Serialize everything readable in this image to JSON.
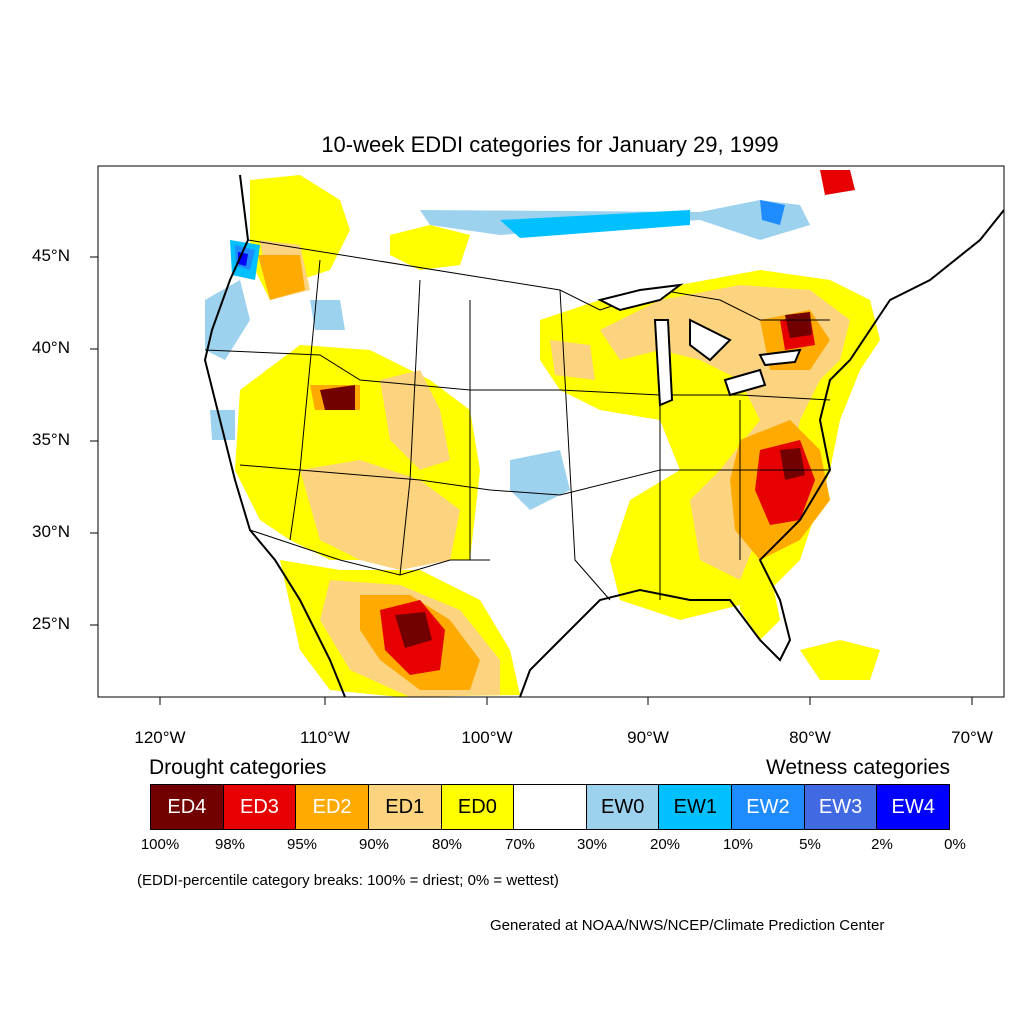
{
  "title": "10-week EDDI categories for January 29, 1999",
  "lat_labels": [
    "45°N",
    "40°N",
    "35°N",
    "30°N",
    "25°N"
  ],
  "lon_labels": [
    "120°W",
    "110°W",
    "100°W",
    "90°W",
    "80°W",
    "70°W"
  ],
  "legend": {
    "drought_heading": "Drought categories",
    "wetness_heading": "Wetness categories",
    "categories": [
      {
        "label": "ED4",
        "color": "#730000",
        "text_color": "#ffffff"
      },
      {
        "label": "ED3",
        "color": "#e60000",
        "text_color": "#ffffff"
      },
      {
        "label": "ED2",
        "color": "#ffaa00",
        "text_color": "#ffffff"
      },
      {
        "label": "ED1",
        "color": "#fcd37f",
        "text_color": "#000000"
      },
      {
        "label": "ED0",
        "color": "#ffff00",
        "text_color": "#000000"
      },
      {
        "label": "",
        "color": "#ffffff",
        "text_color": "#000000"
      },
      {
        "label": "EW0",
        "color": "#9dd2ee",
        "text_color": "#000000"
      },
      {
        "label": "EW1",
        "color": "#00c0ff",
        "text_color": "#000000"
      },
      {
        "label": "EW2",
        "color": "#1e8cff",
        "text_color": "#ffffff"
      },
      {
        "label": "EW3",
        "color": "#4169e1",
        "text_color": "#ffffff"
      },
      {
        "label": "EW4",
        "color": "#0000ff",
        "text_color": "#ffffff"
      }
    ],
    "breaks": [
      "100%",
      "98%",
      "95%",
      "90%",
      "80%",
      "70%",
      "30%",
      "20%",
      "10%",
      "5%",
      "2%",
      "0%"
    ]
  },
  "note": "(EDDI-percentile category breaks: 100% = driest; 0% = wettest)",
  "credit": "Generated at NOAA/NWS/NCEP/Climate Prediction Center"
}
